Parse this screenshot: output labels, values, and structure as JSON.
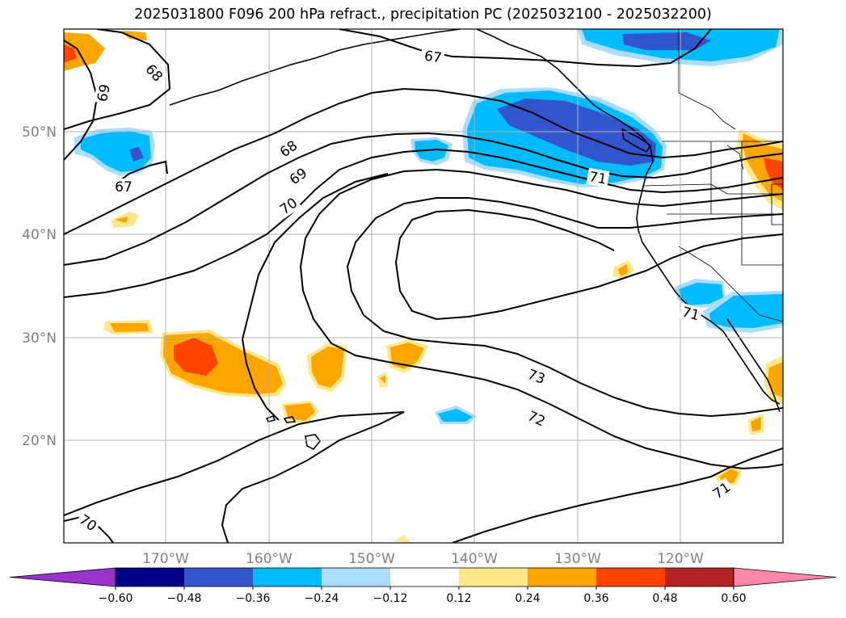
{
  "title": "2025031800 F096 200 hPa refract., precipitation PC (2025032100 - 2025032200)",
  "map": {
    "region": "North Pacific / western North America",
    "lat_labels": [
      "50°N",
      "40°N",
      "30°N",
      "20°N"
    ],
    "lon_labels": [
      "170°W",
      "160°W",
      "150°W",
      "140°W",
      "130°W",
      "120°W"
    ],
    "contour_labels": [
      "67",
      "68",
      "69",
      "67",
      "68",
      "69",
      "70",
      "71",
      "71",
      "73",
      "72",
      "71",
      "70"
    ]
  },
  "colorbar": {
    "tick_labels": [
      "−0.60",
      "−0.48",
      "−0.36",
      "−0.24",
      "−0.12",
      "0.12",
      "0.24",
      "0.36",
      "0.48",
      "0.60"
    ],
    "colors": [
      "#9933cc",
      "#000088",
      "#3355cc",
      "#00bbff",
      "#aaddff",
      "#ffffff",
      "#ffe88a",
      "#ffa500",
      "#ff4400",
      "#b22222",
      "#ff88aa"
    ]
  }
}
